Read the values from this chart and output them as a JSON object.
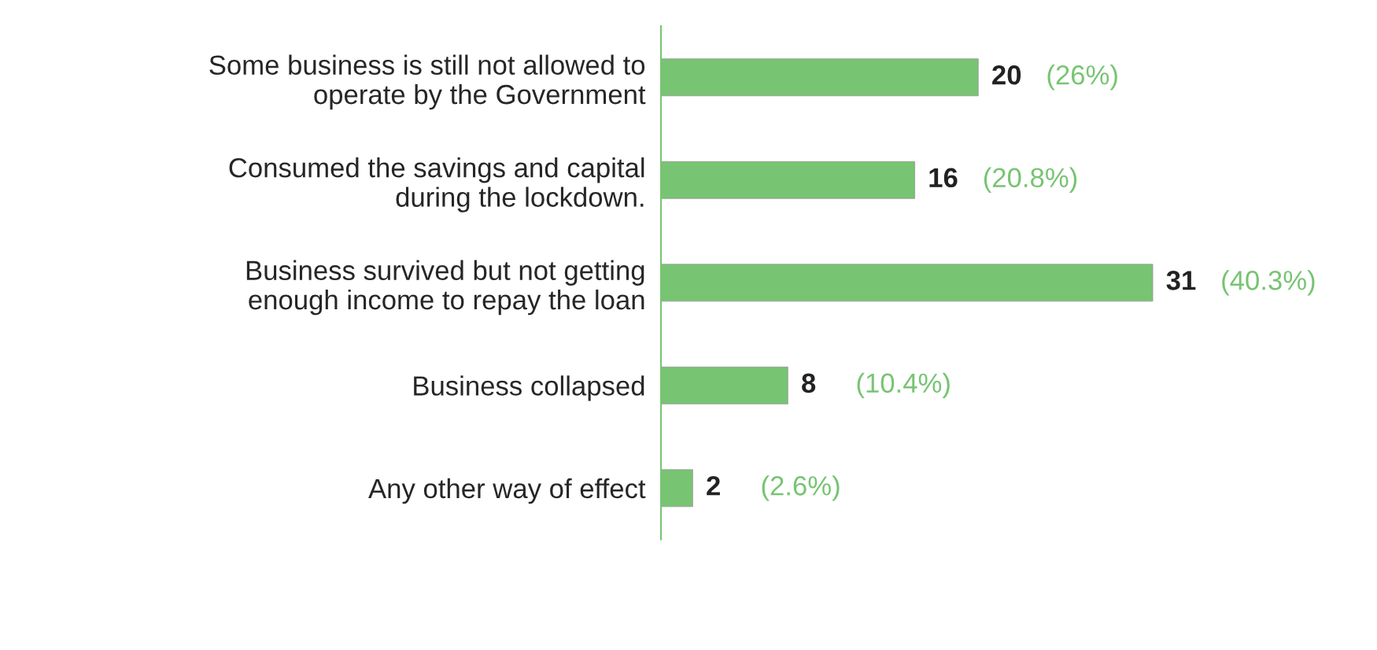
{
  "chart_data": {
    "type": "bar",
    "orientation": "horizontal",
    "categories": [
      "Some business is still not allowed to\noperate by the Government",
      "Consumed the savings and capital\nduring the lockdown.",
      "Business survived but not getting\nenough income to repay the loan",
      "Business collapsed",
      "Any other way of effect"
    ],
    "values": [
      20,
      16,
      31,
      8,
      2
    ],
    "color": "#77c472",
    "data_labels": true,
    "grid": false,
    "legend": false,
    "tick_labels": "y",
    "annotations": [
      {
        "text": "(26%)",
        "x": 20,
        "y": "Some business is still not allowed to\noperate by the Government"
      },
      {
        "text": "(20.8%)",
        "x": 16,
        "y": "Consumed the savings and capital\nduring the lockdown."
      },
      {
        "text": "(40.3%)",
        "x": 31,
        "y": "Business survived but not getting\nenough income to repay the loan"
      },
      {
        "text": "(10.4%)",
        "x": 8,
        "y": "Business collapsed"
      },
      {
        "text": "(2.6%)",
        "x": 2,
        "y": "Any other way of effect"
      }
    ]
  }
}
